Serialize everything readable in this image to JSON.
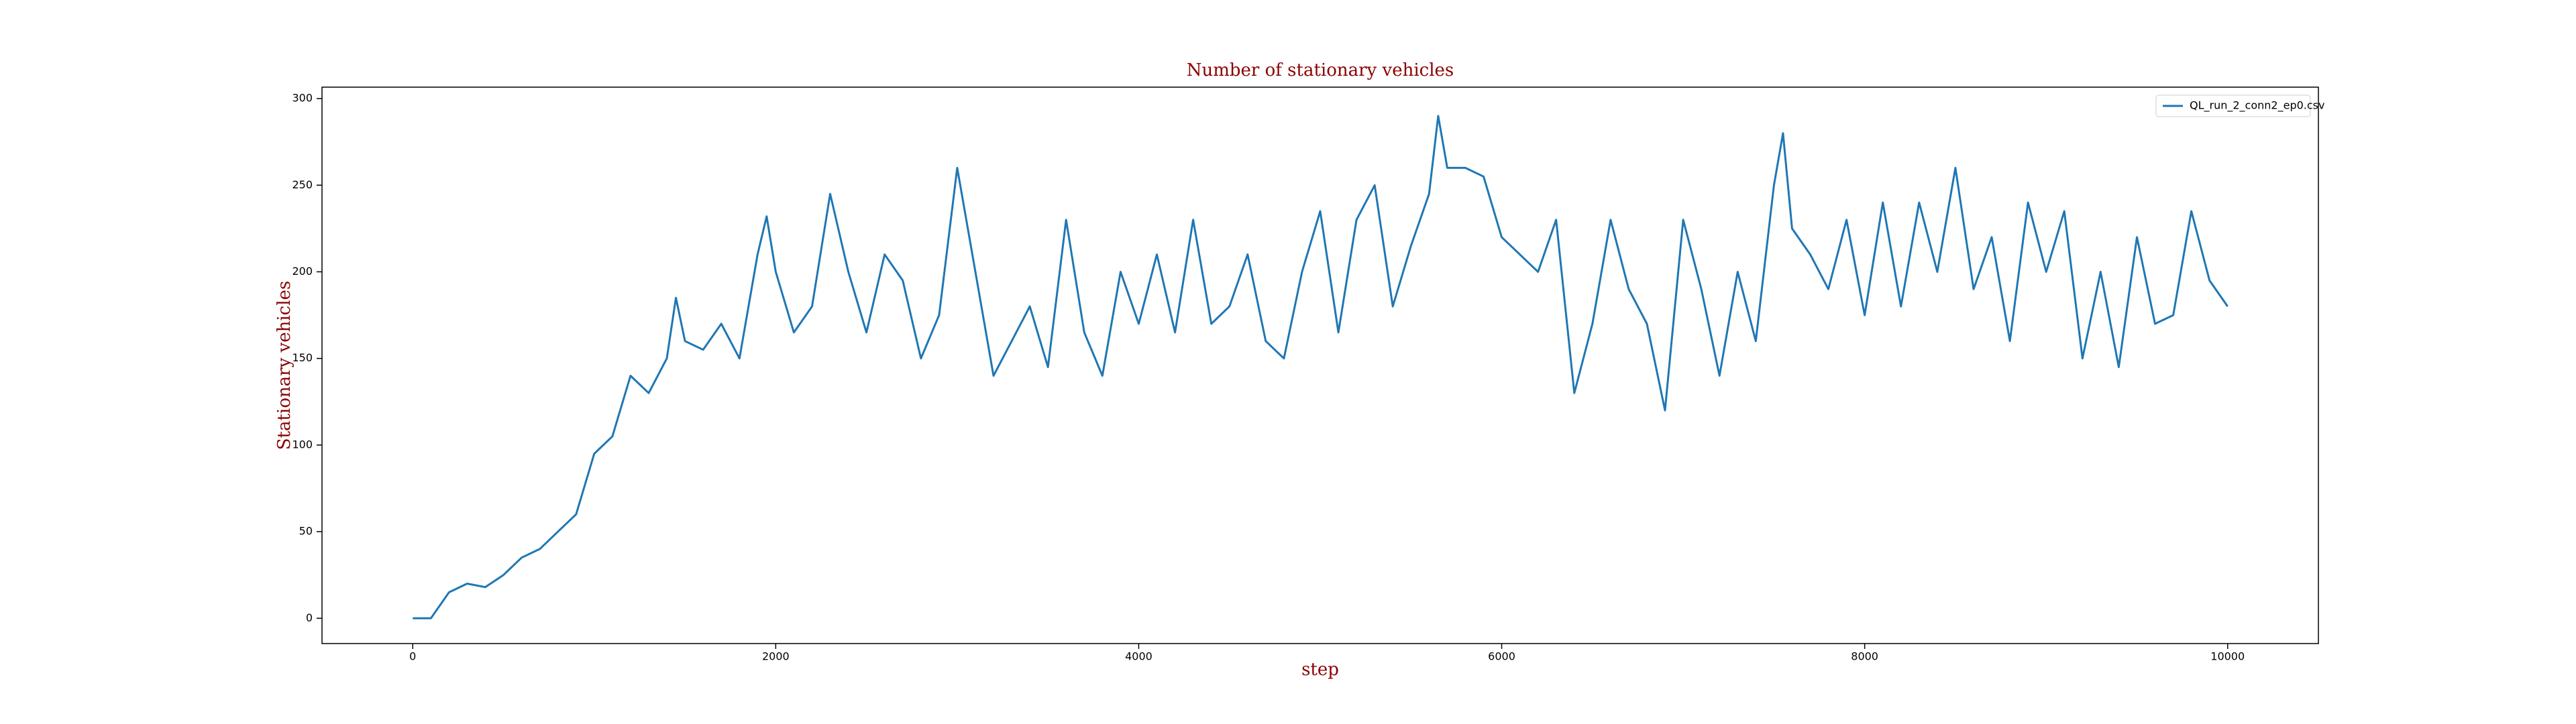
{
  "chart_data": {
    "type": "line",
    "title": "Number of stationary vehicles",
    "x_label": "step",
    "y_label": "Stationary vehicles",
    "x": [
      0,
      100,
      200,
      300,
      400,
      500,
      600,
      700,
      800,
      900,
      1000,
      1100,
      1200,
      1300,
      1400,
      1450,
      1500,
      1600,
      1700,
      1800,
      1900,
      1950,
      2000,
      2100,
      2200,
      2300,
      2400,
      2500,
      2600,
      2700,
      2800,
      2900,
      3000,
      3100,
      3200,
      3300,
      3400,
      3500,
      3600,
      3700,
      3800,
      3900,
      4000,
      4100,
      4200,
      4300,
      4400,
      4500,
      4600,
      4700,
      4800,
      4900,
      5000,
      5100,
      5200,
      5300,
      5400,
      5500,
      5600,
      5650,
      5700,
      5800,
      5900,
      6000,
      6100,
      6200,
      6300,
      6400,
      6500,
      6600,
      6700,
      6800,
      6900,
      7000,
      7100,
      7200,
      7300,
      7400,
      7500,
      7550,
      7600,
      7700,
      7800,
      7900,
      8000,
      8100,
      8200,
      8300,
      8400,
      8500,
      8600,
      8700,
      8800,
      8900,
      9000,
      9100,
      9200,
      9300,
      9400,
      9500,
      9600,
      9700,
      9800,
      9900,
      10000
    ],
    "series": [
      {
        "name": "QL_run_2_conn2_ep0.csv",
        "color": "#1f77b4",
        "values": [
          0,
          0,
          15,
          20,
          18,
          25,
          35,
          40,
          50,
          60,
          95,
          105,
          140,
          130,
          150,
          185,
          160,
          155,
          170,
          150,
          210,
          232,
          200,
          165,
          180,
          245,
          200,
          165,
          210,
          195,
          150,
          175,
          260,
          200,
          140,
          160,
          180,
          145,
          230,
          165,
          140,
          200,
          170,
          210,
          165,
          230,
          170,
          180,
          210,
          160,
          150,
          200,
          235,
          165,
          230,
          250,
          180,
          215,
          245,
          290,
          260,
          260,
          255,
          220,
          210,
          200,
          230,
          130,
          170,
          230,
          190,
          170,
          120,
          230,
          190,
          140,
          200,
          160,
          250,
          280,
          225,
          210,
          190,
          230,
          175,
          240,
          180,
          240,
          200,
          260,
          190,
          220,
          160,
          240,
          200,
          235,
          150,
          200,
          145,
          220,
          170,
          175,
          235,
          195,
          180
        ]
      }
    ],
    "xlim": [
      -500,
      10500
    ],
    "ylim": [
      -14.6,
      306.6
    ],
    "xticks": [
      0,
      2000,
      4000,
      6000,
      8000,
      10000
    ],
    "yticks": [
      0,
      50,
      100,
      150,
      200,
      250,
      300
    ],
    "legend": "upper right"
  }
}
